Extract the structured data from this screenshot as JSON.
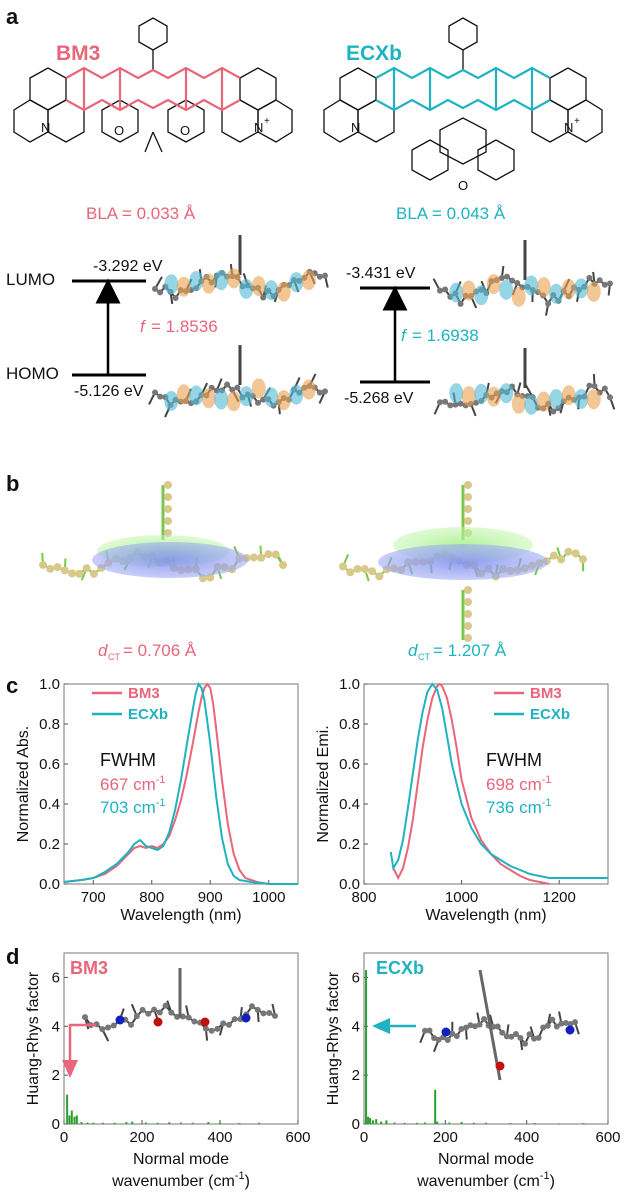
{
  "colors": {
    "bm3": "#e8657a",
    "ecxb": "#1fb3c1",
    "bars": "#2ca02c",
    "arrow": "#000000"
  },
  "panel_a": {
    "label": "a",
    "bm3_title": "BM3",
    "ecxb_title": "ECXb",
    "bm3_bla": "BLA = 0.033 Å",
    "ecxb_bla": "BLA = 0.043 Å",
    "lumo_label": "LUMO",
    "homo_label": "HOMO",
    "bm3_lumo": "-3.292 eV",
    "bm3_homo": "-5.126 eV",
    "ecxb_lumo": "-3.431 eV",
    "ecxb_homo": "-5.268 eV",
    "f_symbol": "f",
    "bm3_f": "= 1.8536",
    "ecxb_f": "= 1.6938",
    "atom_o": "O",
    "atom_n": "N",
    "atom_n_plus": "N",
    "plus": "+"
  },
  "panel_b": {
    "label": "b",
    "d_symbol": "d",
    "d_sub": "CT",
    "bm3_dct": " = 0.706 Å",
    "ecxb_dct": " = 1.207 Å"
  },
  "panel_d": {
    "label": "d",
    "left_tag": "BM3",
    "right_tag": "ECXb"
  },
  "chart_data": [
    {
      "id": "c-abs",
      "panel": "c",
      "type": "line",
      "xlabel": "Wavelength (nm)",
      "ylabel": "Normalized Abs.",
      "xlim": [
        650,
        1050
      ],
      "ylim": [
        0,
        1.0
      ],
      "xticks": [
        700,
        800,
        900,
        1000
      ],
      "yticks": [
        0,
        0.2,
        0.4,
        0.6,
        0.8,
        1.0
      ],
      "legend_placement": "top-left",
      "annotation": {
        "title": "FWHM",
        "bm3": "667 cm",
        "ecxb": "703 cm",
        "unit_sup": "-1"
      },
      "series": [
        {
          "name": "BM3",
          "color": "#e8657a",
          "x": [
            650,
            680,
            700,
            720,
            740,
            760,
            770,
            780,
            790,
            800,
            810,
            820,
            830,
            840,
            850,
            860,
            870,
            880,
            885,
            890,
            895,
            900,
            905,
            910,
            920,
            930,
            940,
            950,
            960,
            980,
            1000,
            1050
          ],
          "y": [
            0.01,
            0.02,
            0.03,
            0.05,
            0.09,
            0.15,
            0.18,
            0.19,
            0.18,
            0.19,
            0.18,
            0.2,
            0.24,
            0.32,
            0.42,
            0.55,
            0.7,
            0.86,
            0.93,
            0.98,
            1.0,
            0.98,
            0.9,
            0.78,
            0.52,
            0.3,
            0.15,
            0.07,
            0.03,
            0.01,
            0.0,
            0.0
          ]
        },
        {
          "name": "ECXb",
          "color": "#1fb3c1",
          "x": [
            650,
            680,
            700,
            720,
            740,
            760,
            770,
            780,
            790,
            800,
            810,
            820,
            830,
            840,
            850,
            860,
            870,
            875,
            880,
            885,
            890,
            900,
            910,
            920,
            930,
            940,
            950,
            970,
            1000,
            1050
          ],
          "y": [
            0.01,
            0.02,
            0.03,
            0.06,
            0.1,
            0.16,
            0.2,
            0.22,
            0.19,
            0.18,
            0.17,
            0.19,
            0.26,
            0.37,
            0.52,
            0.7,
            0.87,
            0.95,
            1.0,
            0.98,
            0.92,
            0.7,
            0.44,
            0.23,
            0.1,
            0.04,
            0.02,
            0.01,
            0.0,
            0.0
          ]
        }
      ]
    },
    {
      "id": "c-emi",
      "panel": "c",
      "type": "line",
      "xlabel": "Wavelength (nm)",
      "ylabel": "Normalized Emi.",
      "xlim": [
        800,
        1300
      ],
      "ylim": [
        0,
        1.0
      ],
      "xticks": [
        800,
        1000,
        1200
      ],
      "yticks": [
        0,
        0.2,
        0.4,
        0.6,
        0.8,
        1.0
      ],
      "legend_placement": "top-right",
      "annotation": {
        "title": "FWHM",
        "bm3": "698 cm",
        "ecxb": "736 cm",
        "unit_sup": "-1"
      },
      "series": [
        {
          "name": "BM3",
          "color": "#e8657a",
          "x": [
            860,
            870,
            880,
            890,
            900,
            910,
            920,
            930,
            940,
            950,
            955,
            960,
            970,
            980,
            990,
            1000,
            1020,
            1040,
            1060,
            1080,
            1100,
            1120,
            1140,
            1160,
            1180
          ],
          "y": [
            0.08,
            0.03,
            0.08,
            0.18,
            0.32,
            0.5,
            0.68,
            0.82,
            0.93,
            0.99,
            1.0,
            0.99,
            0.93,
            0.82,
            0.68,
            0.52,
            0.33,
            0.22,
            0.15,
            0.1,
            0.07,
            0.04,
            0.02,
            0.01,
            0.0
          ]
        },
        {
          "name": "ECXb",
          "color": "#1fb3c1",
          "x": [
            855,
            860,
            870,
            880,
            890,
            900,
            910,
            920,
            930,
            940,
            950,
            960,
            970,
            980,
            1000,
            1020,
            1040,
            1060,
            1080,
            1100,
            1120,
            1140,
            1160,
            1180,
            1200,
            1250,
            1300
          ],
          "y": [
            0.16,
            0.08,
            0.12,
            0.22,
            0.38,
            0.55,
            0.72,
            0.86,
            0.96,
            1.0,
            0.97,
            0.88,
            0.74,
            0.6,
            0.4,
            0.28,
            0.2,
            0.15,
            0.12,
            0.09,
            0.07,
            0.05,
            0.04,
            0.03,
            0.03,
            0.03,
            0.03
          ]
        }
      ]
    },
    {
      "id": "d-bm3",
      "panel": "d",
      "type": "bar",
      "xlabel": "Normal mode wavenumber (cm-1)",
      "xlabel_line1": "Normal mode",
      "xlabel_line2": "wavenumber  (cm",
      "xlabel_sup": "-1",
      "ylabel": "Huang-Rhys factor",
      "xlim": [
        0,
        600
      ],
      "ylim": [
        0,
        7
      ],
      "xticks": [
        0,
        200,
        400,
        600
      ],
      "yticks": [
        0,
        2,
        4,
        6
      ],
      "x": [
        8,
        14,
        20,
        27,
        33,
        45,
        60,
        75,
        100,
        130,
        160,
        175,
        210,
        240,
        270,
        300,
        330,
        370,
        400,
        450,
        500
      ],
      "values": [
        1.2,
        0.35,
        0.55,
        0.3,
        0.35,
        0.08,
        0.06,
        0.05,
        0.05,
        0.05,
        0.08,
        0.1,
        0.06,
        0.05,
        0.07,
        0.06,
        0.05,
        0.08,
        0.05,
        0.04,
        0.05
      ]
    },
    {
      "id": "d-ecxb",
      "panel": "d",
      "type": "bar",
      "xlabel": "Normal mode wavenumber (cm-1)",
      "xlabel_line1": "Normal mode",
      "xlabel_line2": "wavenumber  (cm",
      "xlabel_sup": "-1",
      "ylabel": "Huang-Rhys factor",
      "xlim": [
        0,
        600
      ],
      "ylim": [
        0,
        7
      ],
      "xticks": [
        0,
        200,
        400,
        600
      ],
      "yticks": [
        0,
        2,
        4,
        6
      ],
      "x": [
        5,
        10,
        15,
        22,
        30,
        42,
        55,
        75,
        100,
        130,
        150,
        175,
        180,
        210,
        240,
        270,
        300,
        360,
        420,
        480,
        540
      ],
      "values": [
        6.3,
        0.3,
        0.25,
        0.15,
        0.2,
        0.1,
        0.15,
        0.06,
        0.05,
        0.05,
        0.06,
        1.4,
        0.1,
        0.06,
        0.08,
        0.05,
        0.05,
        0.04,
        0.04,
        0.03,
        0.04
      ]
    }
  ]
}
